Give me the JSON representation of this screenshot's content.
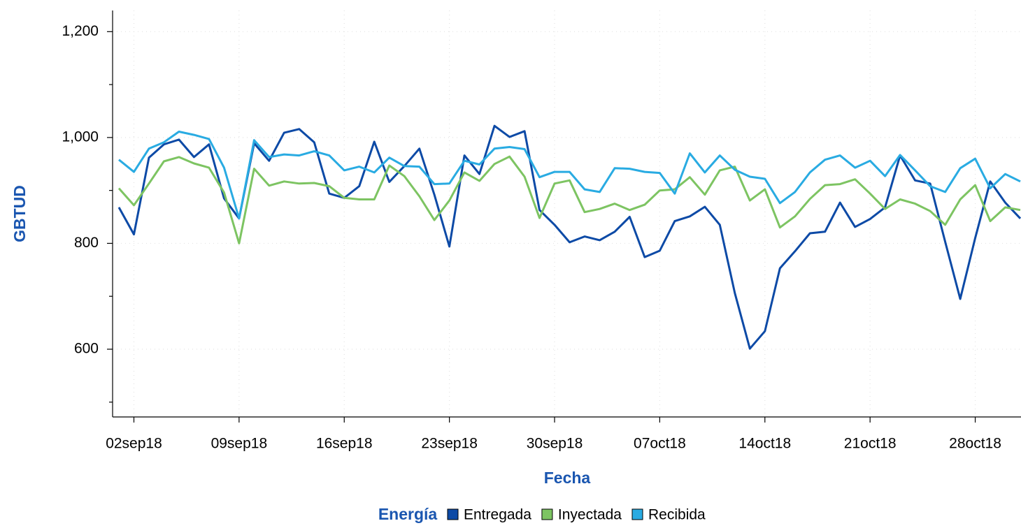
{
  "chart_data": {
    "type": "line",
    "x_label": "Fecha",
    "y_label": "GBTUD",
    "legend": {
      "title": "Energía",
      "position": "bottom"
    },
    "grid": true,
    "x": [
      "2018-09-01",
      "2018-09-02",
      "2018-09-03",
      "2018-09-04",
      "2018-09-05",
      "2018-09-06",
      "2018-09-07",
      "2018-09-08",
      "2018-09-09",
      "2018-09-10",
      "2018-09-11",
      "2018-09-12",
      "2018-09-13",
      "2018-09-14",
      "2018-09-15",
      "2018-09-16",
      "2018-09-17",
      "2018-09-18",
      "2018-09-19",
      "2018-09-20",
      "2018-09-21",
      "2018-09-22",
      "2018-09-23",
      "2018-09-24",
      "2018-09-25",
      "2018-09-26",
      "2018-09-27",
      "2018-09-28",
      "2018-09-29",
      "2018-09-30",
      "2018-10-01",
      "2018-10-02",
      "2018-10-03",
      "2018-10-04",
      "2018-10-05",
      "2018-10-06",
      "2018-10-07",
      "2018-10-08",
      "2018-10-09",
      "2018-10-10",
      "2018-10-11",
      "2018-10-12",
      "2018-10-13",
      "2018-10-14",
      "2018-10-15",
      "2018-10-16",
      "2018-10-17",
      "2018-10-18",
      "2018-10-19",
      "2018-10-20",
      "2018-10-21",
      "2018-10-22",
      "2018-10-23",
      "2018-10-24",
      "2018-10-25",
      "2018-10-26",
      "2018-10-27",
      "2018-10-28",
      "2018-10-29",
      "2018-10-30",
      "2018-10-31"
    ],
    "series": [
      {
        "name": "Entregada",
        "color": "#0d4aa6",
        "values": [
          868,
          817,
          962,
          987,
          996,
          963,
          987,
          885,
          847,
          989,
          956,
          1009,
          1016,
          991,
          894,
          886,
          908,
          992,
          916,
          946,
          979,
          892,
          794,
          966,
          931,
          1022,
          1001,
          1012,
          863,
          835,
          802,
          813,
          806,
          822,
          850,
          774,
          786,
          842,
          851,
          869,
          835,
          706,
          601,
          634,
          753,
          785,
          819,
          822,
          877,
          831,
          846,
          868,
          966,
          919,
          913,
          803,
          695,
          810,
          917,
          877,
          847
        ]
      },
      {
        "name": "Inyectada",
        "color": "#7dc462",
        "values": [
          904,
          872,
          913,
          955,
          963,
          951,
          943,
          896,
          800,
          941,
          909,
          917,
          913,
          914,
          908,
          886,
          883,
          883,
          947,
          927,
          889,
          844,
          881,
          934,
          918,
          950,
          964,
          926,
          848,
          913,
          919,
          859,
          865,
          875,
          863,
          873,
          900,
          902,
          925,
          892,
          938,
          945,
          881,
          902,
          830,
          851,
          884,
          910,
          912,
          921,
          894,
          865,
          883,
          875,
          861,
          835,
          883,
          910,
          842,
          868,
          863
        ]
      },
      {
        "name": "Recibida",
        "color": "#29abe2",
        "values": [
          958,
          935,
          979,
          991,
          1011,
          1005,
          997,
          943,
          847,
          995,
          963,
          968,
          966,
          974,
          966,
          938,
          945,
          934,
          962,
          946,
          945,
          912,
          913,
          956,
          949,
          979,
          982,
          978,
          925,
          935,
          935,
          902,
          897,
          942,
          941,
          935,
          933,
          894,
          970,
          934,
          966,
          939,
          926,
          922,
          876,
          897,
          934,
          958,
          966,
          943,
          956,
          927,
          967,
          938,
          908,
          897,
          942,
          960,
          904,
          931,
          917
        ]
      }
    ],
    "xlim": [
      "2018-09-01",
      "2018-10-31"
    ],
    "xticks": [
      {
        "value": "2018-09-02",
        "label": "02sep18"
      },
      {
        "value": "2018-09-09",
        "label": "09sep18"
      },
      {
        "value": "2018-09-16",
        "label": "16sep18"
      },
      {
        "value": "2018-09-23",
        "label": "23sep18"
      },
      {
        "value": "2018-09-30",
        "label": "30sep18"
      },
      {
        "value": "2018-10-07",
        "label": "07oct18"
      },
      {
        "value": "2018-10-14",
        "label": "14oct18"
      },
      {
        "value": "2018-10-21",
        "label": "21oct18"
      },
      {
        "value": "2018-10-28",
        "label": "28oct18"
      }
    ],
    "ylim": [
      472,
      1240
    ],
    "yticks": [
      600,
      800,
      {
        "value": 1000,
        "label": "1,000"
      },
      {
        "value": 1200,
        "label": "1,200"
      }
    ],
    "yminorticks": [
      500,
      700,
      900,
      1100
    ]
  }
}
